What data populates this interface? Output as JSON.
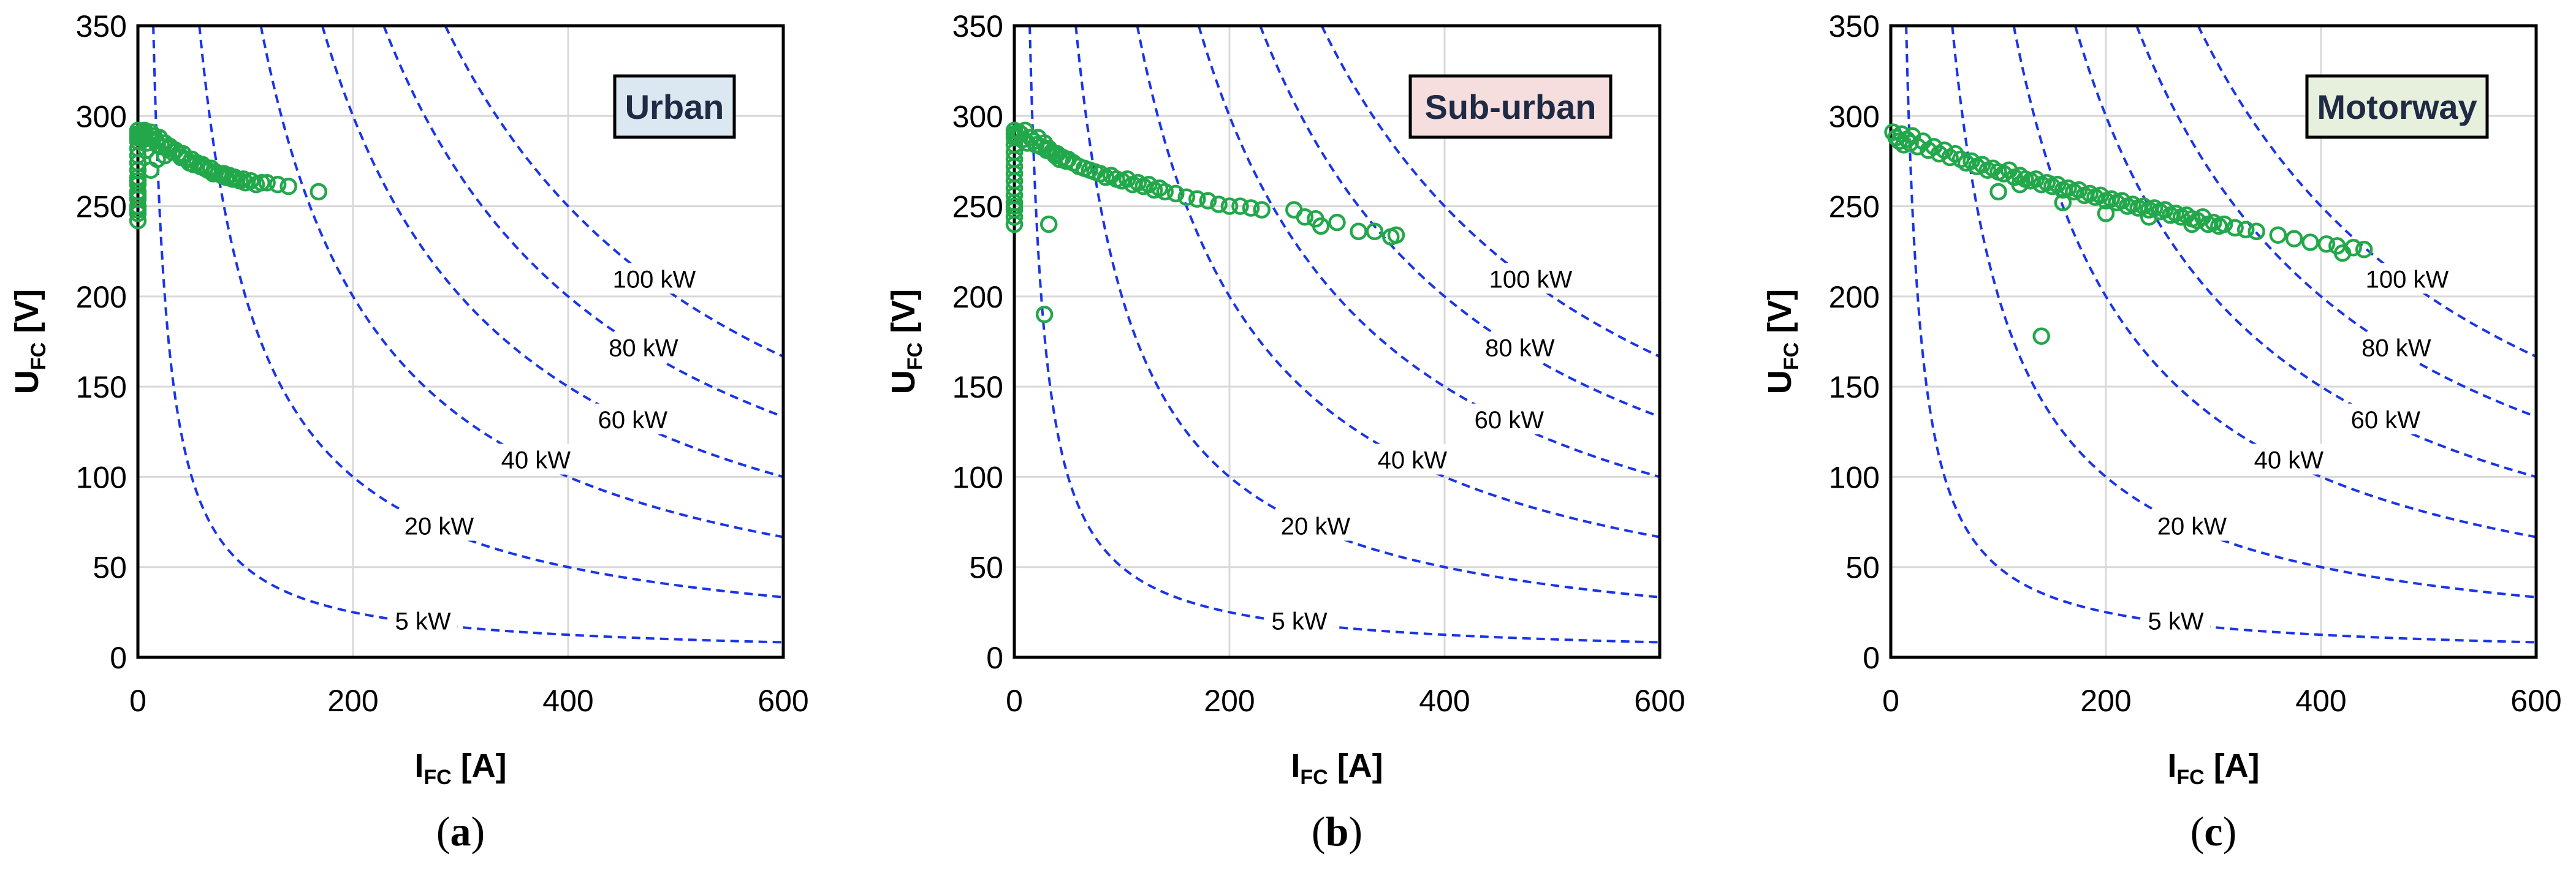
{
  "chart_data": [
    {
      "type": "scatter",
      "panel_label": "a",
      "box_label": "Urban",
      "box_color": "#dbe7f1",
      "xlabel_main": "I",
      "xlabel_sub": "FC",
      "xlabel_unit": "[A]",
      "ylabel_main": "U",
      "ylabel_sub": "FC",
      "ylabel_unit": "[V]",
      "xlim": [
        0,
        600
      ],
      "ylim": [
        0,
        350
      ],
      "x_ticks": [
        0,
        200,
        400,
        600
      ],
      "y_ticks": [
        0,
        50,
        100,
        150,
        200,
        250,
        300,
        350
      ],
      "grid": true,
      "iso_power_kW": [
        5,
        20,
        40,
        60,
        80,
        100
      ],
      "iso_labels": [
        "5 kW",
        "20 kW",
        "40 kW",
        "60 kW",
        "80 kW",
        "100 kW"
      ],
      "series": [
        {
          "x": [
            0,
            0,
            0,
            0,
            0,
            0,
            0,
            0,
            0,
            0,
            0,
            0,
            0,
            0,
            0,
            0,
            0,
            0,
            2,
            3,
            4,
            5,
            6,
            8,
            10,
            12,
            14,
            15,
            17,
            18,
            20,
            22,
            25,
            28,
            30,
            32,
            35,
            38,
            40,
            42,
            45,
            48,
            50,
            52,
            55,
            58,
            60,
            62,
            65,
            68,
            70,
            72,
            75,
            78,
            80,
            82,
            85,
            88,
            90,
            92,
            95,
            98,
            100,
            105,
            110,
            115,
            120,
            130,
            140,
            168,
            12,
            18,
            25,
            8
          ],
          "y": [
            242,
            246,
            250,
            254,
            258,
            262,
            266,
            270,
            274,
            278,
            282,
            286,
            288,
            290,
            292,
            248,
            256,
            264,
            289,
            290,
            291,
            287,
            292,
            285,
            288,
            291,
            287,
            289,
            286,
            284,
            288,
            283,
            285,
            282,
            283,
            280,
            281,
            279,
            277,
            279,
            276,
            274,
            276,
            273,
            274,
            272,
            273,
            271,
            270,
            271,
            268,
            269,
            268,
            267,
            268,
            266,
            267,
            265,
            266,
            265,
            264,
            265,
            263,
            264,
            262,
            263,
            263,
            262,
            261,
            258,
            270,
            276,
            278,
            281
          ]
        }
      ]
    },
    {
      "type": "scatter",
      "panel_label": "b",
      "box_label": "Sub-urban",
      "box_color": "#f6dede",
      "xlabel_main": "I",
      "xlabel_sub": "FC",
      "xlabel_unit": "[A]",
      "ylabel_main": "U",
      "ylabel_sub": "FC",
      "ylabel_unit": "[V]",
      "xlim": [
        0,
        600
      ],
      "ylim": [
        0,
        350
      ],
      "x_ticks": [
        0,
        200,
        400,
        600
      ],
      "y_ticks": [
        0,
        50,
        100,
        150,
        200,
        250,
        300,
        350
      ],
      "grid": true,
      "iso_power_kW": [
        5,
        20,
        40,
        60,
        80,
        100
      ],
      "iso_labels": [
        "5 kW",
        "20 kW",
        "40 kW",
        "60 kW",
        "80 kW",
        "100 kW"
      ],
      "series": [
        {
          "x": [
            0,
            0,
            0,
            0,
            0,
            0,
            0,
            0,
            0,
            0,
            0,
            0,
            0,
            0,
            0,
            0,
            2,
            4,
            6,
            8,
            10,
            12,
            15,
            18,
            20,
            22,
            25,
            28,
            30,
            32,
            35,
            38,
            40,
            42,
            45,
            48,
            50,
            55,
            60,
            65,
            70,
            75,
            80,
            85,
            90,
            95,
            100,
            105,
            110,
            115,
            120,
            125,
            130,
            135,
            140,
            150,
            160,
            170,
            180,
            190,
            200,
            210,
            220,
            230,
            260,
            270,
            280,
            285,
            300,
            320,
            335,
            350,
            355,
            28,
            32
          ],
          "y": [
            240,
            244,
            248,
            252,
            256,
            260,
            264,
            268,
            272,
            276,
            280,
            284,
            288,
            290,
            292,
            250,
            289,
            291,
            290,
            287,
            292,
            285,
            288,
            286,
            284,
            288,
            283,
            285,
            281,
            282,
            280,
            278,
            279,
            276,
            277,
            275,
            276,
            274,
            272,
            271,
            270,
            269,
            268,
            266,
            267,
            265,
            264,
            265,
            262,
            263,
            261,
            262,
            259,
            260,
            258,
            257,
            255,
            254,
            253,
            251,
            250,
            250,
            249,
            248,
            248,
            244,
            243,
            239,
            241,
            236,
            236,
            233,
            234,
            190,
            240
          ]
        }
      ]
    },
    {
      "type": "scatter",
      "panel_label": "c",
      "box_label": "Motorway",
      "box_color": "#e7efdd",
      "xlabel_main": "I",
      "xlabel_sub": "FC",
      "xlabel_unit": "[A]",
      "ylabel_main": "U",
      "ylabel_sub": "FC",
      "ylabel_unit": "[V]",
      "xlim": [
        0,
        600
      ],
      "ylim": [
        0,
        350
      ],
      "x_ticks": [
        0,
        200,
        400,
        600
      ],
      "y_ticks": [
        0,
        50,
        100,
        150,
        200,
        250,
        300,
        350
      ],
      "grid": true,
      "iso_power_kW": [
        5,
        20,
        40,
        60,
        80,
        100
      ],
      "iso_labels": [
        "5 kW",
        "20 kW",
        "40 kW",
        "60 kW",
        "80 kW",
        "100 kW"
      ],
      "series": [
        {
          "x": [
            2,
            5,
            8,
            10,
            12,
            15,
            18,
            20,
            25,
            30,
            35,
            40,
            45,
            50,
            55,
            60,
            65,
            70,
            75,
            80,
            85,
            90,
            95,
            100,
            105,
            110,
            115,
            120,
            125,
            130,
            135,
            140,
            145,
            150,
            155,
            160,
            165,
            170,
            175,
            180,
            185,
            190,
            195,
            200,
            205,
            210,
            215,
            220,
            225,
            230,
            235,
            240,
            245,
            250,
            255,
            260,
            265,
            270,
            275,
            280,
            285,
            290,
            295,
            300,
            305,
            310,
            320,
            330,
            340,
            360,
            375,
            390,
            405,
            415,
            420,
            430,
            440,
            140,
            100,
            120,
            160,
            200,
            240,
            280
          ],
          "y": [
            291,
            288,
            286,
            290,
            284,
            287,
            285,
            289,
            283,
            286,
            281,
            283,
            279,
            281,
            277,
            279,
            276,
            274,
            275,
            272,
            273,
            270,
            271,
            269,
            268,
            270,
            266,
            267,
            265,
            264,
            265,
            262,
            263,
            261,
            262,
            259,
            260,
            258,
            259,
            256,
            257,
            255,
            256,
            253,
            254,
            252,
            253,
            250,
            251,
            249,
            250,
            248,
            249,
            247,
            248,
            245,
            246,
            244,
            245,
            243,
            242,
            244,
            240,
            241,
            239,
            240,
            238,
            237,
            236,
            234,
            232,
            230,
            229,
            228,
            224,
            227,
            226,
            178,
            258,
            262,
            252,
            246,
            244,
            240
          ]
        }
      ]
    }
  ]
}
